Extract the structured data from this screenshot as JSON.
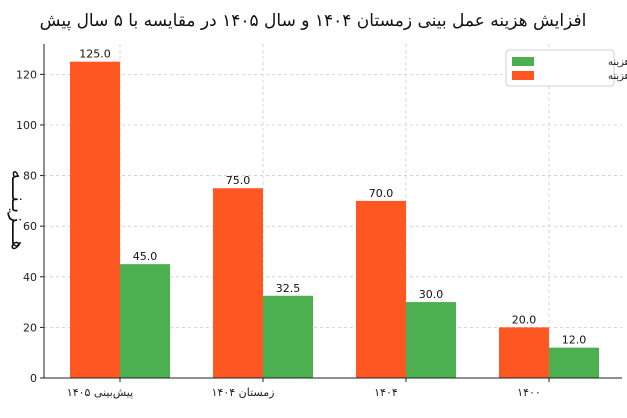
{
  "chart_data": {
    "type": "bar",
    "title": "افزایش هزینه عمل بینی زمستان ۱۴۰۴ و سال ۱۴۰۵ در مقایسه با ۵ سال پیش",
    "xlabel": "",
    "ylabel": "هـــزیـنـــه",
    "categories": [
      "پیش‌بینی ۱۴۰۵",
      "زمستان ۱۴۰۴",
      "۱۴۰۴",
      "۱۴۰۰"
    ],
    "series": [
      {
        "name": "حداکثر هزینه",
        "values": [
          125.0,
          75.0,
          70.0,
          20.0
        ],
        "color": "#ff5722"
      },
      {
        "name": "حداقل هزینه",
        "values": [
          45.0,
          32.5,
          30.0,
          12.0
        ],
        "color": "#4caf50"
      }
    ],
    "data_labels": [
      [
        "125.0",
        "75.0",
        "70.0",
        "20.0"
      ],
      [
        "45.0",
        "32.5",
        "30.0",
        "12.0"
      ]
    ],
    "ylim": [
      0,
      132
    ],
    "yticks": [
      "0",
      "20",
      "40",
      "60",
      "80",
      "100",
      "120"
    ],
    "grid": true,
    "legend": {
      "placement": "top-right",
      "order": [
        "حداقل هزینه",
        "حداکثر هزینه"
      ]
    }
  }
}
